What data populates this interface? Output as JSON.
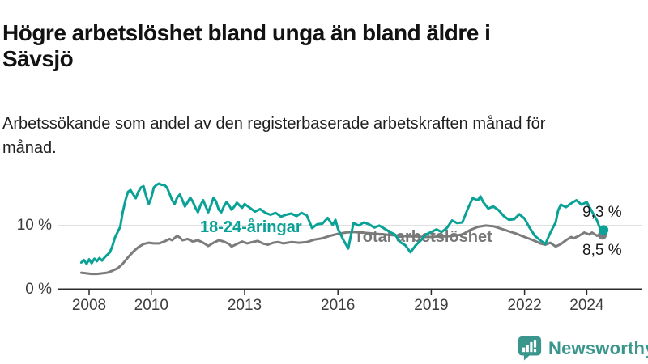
{
  "header": {
    "title": "Högre arbetslöshet bland unga än bland äldre i Sävsjö",
    "subtitle": "Arbetssökande som andel av den registerbaserade arbetskraften månad för månad."
  },
  "footer": {
    "brand": "Newsworthy"
  },
  "colors": {
    "young": "#0aa296",
    "total": "#7c7c7c",
    "total_label": "#777777",
    "grid": "#dcdcdc",
    "axis": "#2b2b2b",
    "tick_text": "#3d3d3d",
    "value_text": "#1a1a1a",
    "brand": "#3a968c"
  },
  "chart_data": {
    "type": "line",
    "title": "Högre arbetslöshet bland unga än bland äldre i Sävsjö",
    "subtitle": "Arbetssökande som andel av den registerbaserade arbetskraften månad för månad.",
    "unit": "%",
    "grid": "horizontal-10-only",
    "legend_position": "inline-labels",
    "x_axis": {
      "range_years": [
        2007.6,
        2024.8
      ],
      "ticks": [
        {
          "label": "2008",
          "year": 2008
        },
        {
          "label": "2010",
          "year": 2010
        },
        {
          "label": "2013",
          "year": 2013
        },
        {
          "label": "2016",
          "year": 2016
        },
        {
          "label": "2019",
          "year": 2019
        },
        {
          "label": "2022",
          "year": 2022
        },
        {
          "label": "2024",
          "year": 2024
        }
      ]
    },
    "y_axis": {
      "range": [
        0,
        18
      ],
      "ticks": [
        {
          "label": "10 %",
          "value": 10
        },
        {
          "label": "0 %",
          "value": 0
        }
      ]
    },
    "series": [
      {
        "name": "18-24-åringar",
        "color": "#0aa296",
        "end_label": "9,3 %",
        "end_value": 9.3,
        "points": [
          [
            2007.75,
            4.2
          ],
          [
            2007.83,
            4.6
          ],
          [
            2007.92,
            4.0
          ],
          [
            2008.0,
            4.7
          ],
          [
            2008.08,
            4.1
          ],
          [
            2008.17,
            4.8
          ],
          [
            2008.25,
            4.4
          ],
          [
            2008.33,
            4.9
          ],
          [
            2008.42,
            4.5
          ],
          [
            2008.5,
            5.0
          ],
          [
            2008.58,
            5.4
          ],
          [
            2008.67,
            5.8
          ],
          [
            2008.75,
            6.8
          ],
          [
            2008.83,
            8.1
          ],
          [
            2008.92,
            9.0
          ],
          [
            2009.0,
            9.8
          ],
          [
            2009.08,
            12.1
          ],
          [
            2009.17,
            14.0
          ],
          [
            2009.25,
            15.3
          ],
          [
            2009.33,
            15.6
          ],
          [
            2009.42,
            14.9
          ],
          [
            2009.5,
            14.3
          ],
          [
            2009.58,
            15.3
          ],
          [
            2009.67,
            16.0
          ],
          [
            2009.75,
            16.2
          ],
          [
            2009.83,
            14.7
          ],
          [
            2009.92,
            13.4
          ],
          [
            2010.0,
            14.4
          ],
          [
            2010.08,
            16.0
          ],
          [
            2010.17,
            16.4
          ],
          [
            2010.25,
            16.6
          ],
          [
            2010.33,
            16.4
          ],
          [
            2010.42,
            16.4
          ],
          [
            2010.5,
            16.0
          ],
          [
            2010.58,
            15.1
          ],
          [
            2010.67,
            14.0
          ],
          [
            2010.75,
            13.4
          ],
          [
            2010.83,
            14.4
          ],
          [
            2010.92,
            14.9
          ],
          [
            2011.0,
            14.0
          ],
          [
            2011.08,
            13.0
          ],
          [
            2011.17,
            13.7
          ],
          [
            2011.25,
            14.4
          ],
          [
            2011.33,
            13.8
          ],
          [
            2011.42,
            12.8
          ],
          [
            2011.5,
            12.1
          ],
          [
            2011.58,
            13.2
          ],
          [
            2011.67,
            14.0
          ],
          [
            2011.75,
            13.0
          ],
          [
            2011.83,
            12.1
          ],
          [
            2011.92,
            13.2
          ],
          [
            2012.0,
            14.4
          ],
          [
            2012.08,
            13.8
          ],
          [
            2012.17,
            12.5
          ],
          [
            2012.25,
            12.1
          ],
          [
            2012.33,
            13.0
          ],
          [
            2012.42,
            13.7
          ],
          [
            2012.5,
            13.2
          ],
          [
            2012.58,
            12.5
          ],
          [
            2012.67,
            13.0
          ],
          [
            2012.75,
            13.6
          ],
          [
            2012.83,
            13.2
          ],
          [
            2012.92,
            12.8
          ],
          [
            2013.0,
            13.4
          ],
          [
            2013.17,
            12.8
          ],
          [
            2013.33,
            12.2
          ],
          [
            2013.5,
            12.6
          ],
          [
            2013.67,
            12.0
          ],
          [
            2013.83,
            11.7
          ],
          [
            2014.0,
            12.0
          ],
          [
            2014.17,
            11.4
          ],
          [
            2014.33,
            11.7
          ],
          [
            2014.5,
            11.9
          ],
          [
            2014.67,
            11.5
          ],
          [
            2014.83,
            12.0
          ],
          [
            2015.0,
            11.6
          ],
          [
            2015.17,
            9.6
          ],
          [
            2015.33,
            10.2
          ],
          [
            2015.5,
            10.3
          ],
          [
            2015.67,
            11.2
          ],
          [
            2015.83,
            10.1
          ],
          [
            2015.92,
            10.9
          ],
          [
            2016.0,
            9.5
          ],
          [
            2016.17,
            7.8
          ],
          [
            2016.33,
            6.4
          ],
          [
            2016.5,
            10.4
          ],
          [
            2016.67,
            10.0
          ],
          [
            2016.83,
            10.5
          ],
          [
            2017.0,
            10.2
          ],
          [
            2017.17,
            9.7
          ],
          [
            2017.33,
            10.0
          ],
          [
            2017.5,
            9.5
          ],
          [
            2017.67,
            9.0
          ],
          [
            2017.83,
            8.6
          ],
          [
            2018.0,
            7.4
          ],
          [
            2018.17,
            6.9
          ],
          [
            2018.33,
            5.8
          ],
          [
            2018.5,
            6.9
          ],
          [
            2018.67,
            7.7
          ],
          [
            2018.83,
            8.6
          ],
          [
            2019.0,
            9.0
          ],
          [
            2019.17,
            9.4
          ],
          [
            2019.33,
            9.0
          ],
          [
            2019.5,
            9.6
          ],
          [
            2019.67,
            10.8
          ],
          [
            2019.83,
            10.4
          ],
          [
            2020.0,
            10.5
          ],
          [
            2020.17,
            12.6
          ],
          [
            2020.33,
            14.3
          ],
          [
            2020.5,
            14.0
          ],
          [
            2020.58,
            14.6
          ],
          [
            2020.67,
            13.7
          ],
          [
            2020.83,
            12.7
          ],
          [
            2021.0,
            13.0
          ],
          [
            2021.17,
            12.4
          ],
          [
            2021.33,
            11.5
          ],
          [
            2021.5,
            10.9
          ],
          [
            2021.67,
            11.0
          ],
          [
            2021.83,
            11.8
          ],
          [
            2022.0,
            11.1
          ],
          [
            2022.17,
            9.6
          ],
          [
            2022.33,
            8.4
          ],
          [
            2022.5,
            7.7
          ],
          [
            2022.67,
            7.1
          ],
          [
            2022.83,
            8.9
          ],
          [
            2023.0,
            10.5
          ],
          [
            2023.08,
            12.4
          ],
          [
            2023.17,
            13.3
          ],
          [
            2023.33,
            12.9
          ],
          [
            2023.5,
            13.5
          ],
          [
            2023.67,
            14.0
          ],
          [
            2023.83,
            13.3
          ],
          [
            2024.0,
            13.7
          ],
          [
            2024.17,
            12.2
          ],
          [
            2024.33,
            10.8
          ],
          [
            2024.42,
            9.6
          ],
          [
            2024.54,
            9.3
          ]
        ]
      },
      {
        "name": "Total arbetslöshet",
        "color": "#7c7c7c",
        "end_label": "8,5 %",
        "end_value": 8.5,
        "points": [
          [
            2007.75,
            2.6
          ],
          [
            2007.92,
            2.5
          ],
          [
            2008.08,
            2.4
          ],
          [
            2008.25,
            2.4
          ],
          [
            2008.42,
            2.5
          ],
          [
            2008.58,
            2.6
          ],
          [
            2008.75,
            2.9
          ],
          [
            2008.92,
            3.3
          ],
          [
            2009.08,
            4.0
          ],
          [
            2009.25,
            5.0
          ],
          [
            2009.42,
            5.9
          ],
          [
            2009.58,
            6.6
          ],
          [
            2009.75,
            7.1
          ],
          [
            2009.92,
            7.3
          ],
          [
            2010.08,
            7.2
          ],
          [
            2010.25,
            7.2
          ],
          [
            2010.42,
            7.5
          ],
          [
            2010.58,
            7.9
          ],
          [
            2010.67,
            7.7
          ],
          [
            2010.83,
            8.4
          ],
          [
            2010.92,
            8.1
          ],
          [
            2011.0,
            7.7
          ],
          [
            2011.17,
            7.9
          ],
          [
            2011.33,
            7.5
          ],
          [
            2011.5,
            7.7
          ],
          [
            2011.67,
            7.3
          ],
          [
            2011.83,
            6.8
          ],
          [
            2012.0,
            7.3
          ],
          [
            2012.17,
            7.7
          ],
          [
            2012.33,
            7.5
          ],
          [
            2012.5,
            7.1
          ],
          [
            2012.58,
            6.7
          ],
          [
            2012.75,
            7.1
          ],
          [
            2012.92,
            7.5
          ],
          [
            2013.08,
            7.2
          ],
          [
            2013.25,
            7.4
          ],
          [
            2013.42,
            7.6
          ],
          [
            2013.58,
            7.2
          ],
          [
            2013.75,
            7.0
          ],
          [
            2013.92,
            7.3
          ],
          [
            2014.08,
            7.4
          ],
          [
            2014.25,
            7.2
          ],
          [
            2014.5,
            7.4
          ],
          [
            2014.75,
            7.3
          ],
          [
            2015.0,
            7.4
          ],
          [
            2015.25,
            7.8
          ],
          [
            2015.5,
            8.0
          ],
          [
            2015.75,
            8.4
          ],
          [
            2016.0,
            8.7
          ],
          [
            2016.25,
            8.9
          ],
          [
            2016.5,
            9.0
          ],
          [
            2016.75,
            8.9
          ],
          [
            2017.0,
            8.8
          ],
          [
            2017.25,
            8.7
          ],
          [
            2017.5,
            8.6
          ],
          [
            2017.75,
            8.5
          ],
          [
            2018.0,
            8.4
          ],
          [
            2018.25,
            8.3
          ],
          [
            2018.5,
            8.3
          ],
          [
            2018.75,
            8.2
          ],
          [
            2019.0,
            8.2
          ],
          [
            2019.25,
            8.3
          ],
          [
            2019.5,
            8.3
          ],
          [
            2019.75,
            8.4
          ],
          [
            2020.0,
            8.6
          ],
          [
            2020.25,
            9.3
          ],
          [
            2020.5,
            9.8
          ],
          [
            2020.75,
            10.0
          ],
          [
            2021.0,
            9.9
          ],
          [
            2021.25,
            9.5
          ],
          [
            2021.5,
            9.1
          ],
          [
            2021.75,
            8.7
          ],
          [
            2022.0,
            8.2
          ],
          [
            2022.17,
            7.9
          ],
          [
            2022.33,
            7.6
          ],
          [
            2022.5,
            7.2
          ],
          [
            2022.67,
            7.0
          ],
          [
            2022.83,
            7.3
          ],
          [
            2023.0,
            6.7
          ],
          [
            2023.17,
            7.1
          ],
          [
            2023.33,
            7.7
          ],
          [
            2023.5,
            8.2
          ],
          [
            2023.58,
            8.0
          ],
          [
            2023.75,
            8.4
          ],
          [
            2023.92,
            8.9
          ],
          [
            2024.08,
            8.6
          ],
          [
            2024.17,
            8.9
          ],
          [
            2024.33,
            8.4
          ],
          [
            2024.42,
            8.6
          ],
          [
            2024.54,
            8.5
          ]
        ]
      }
    ]
  }
}
